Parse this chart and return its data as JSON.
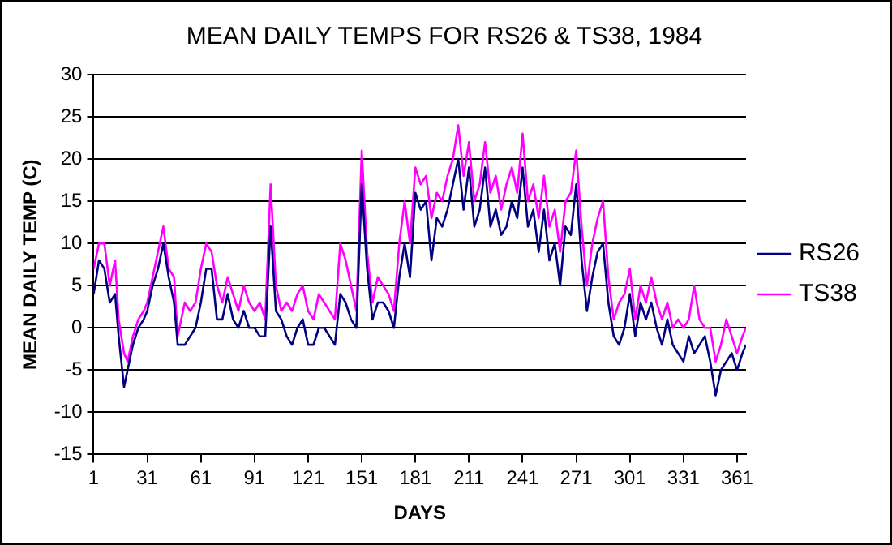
{
  "chart_data": {
    "type": "line",
    "title": "MEAN DAILY TEMPS FOR RS26 & TS38, 1984",
    "xlabel": "DAYS",
    "ylabel": "MEAN DAILY TEMP (C)",
    "x": [
      1,
      4,
      7,
      10,
      13,
      15,
      18,
      20,
      23,
      26,
      29,
      31,
      34,
      37,
      40,
      43,
      46,
      48,
      52,
      55,
      58,
      61,
      64,
      67,
      70,
      73,
      76,
      79,
      82,
      85,
      88,
      91,
      94,
      97,
      100,
      103,
      106,
      109,
      112,
      115,
      118,
      121,
      124,
      127,
      130,
      133,
      136,
      139,
      142,
      145,
      148,
      151,
      154,
      157,
      160,
      163,
      166,
      169,
      172,
      175,
      178,
      181,
      184,
      187,
      190,
      193,
      196,
      199,
      202,
      205,
      208,
      211,
      214,
      217,
      220,
      223,
      226,
      229,
      232,
      235,
      238,
      241,
      244,
      247,
      250,
      253,
      256,
      259,
      262,
      265,
      268,
      271,
      274,
      277,
      280,
      283,
      286,
      289,
      292,
      295,
      298,
      301,
      304,
      307,
      310,
      313,
      316,
      319,
      322,
      325,
      328,
      331,
      334,
      337,
      340,
      343,
      346,
      349,
      352,
      355,
      358,
      361,
      364,
      366
    ],
    "series": [
      {
        "name": "RS26",
        "color": "#000080",
        "values": [
          4,
          8,
          7,
          3,
          4,
          -1,
          -7,
          -5,
          -2,
          0,
          1,
          2,
          5,
          7,
          10,
          6,
          3,
          -2,
          -2,
          -1,
          0,
          3,
          7,
          7,
          1,
          1,
          4,
          1,
          0,
          2,
          0,
          0,
          -1,
          -1,
          12,
          2,
          1,
          -1,
          -2,
          0,
          1,
          -2,
          -2,
          0,
          0,
          -1,
          -2,
          4,
          3,
          1,
          0,
          17,
          7,
          1,
          3,
          3,
          2,
          0,
          6,
          10,
          6,
          16,
          14,
          15,
          8,
          13,
          12,
          14,
          17,
          20,
          14,
          19,
          12,
          14,
          19,
          12,
          14,
          11,
          12,
          15,
          13,
          19,
          12,
          14,
          9,
          14,
          8,
          10,
          5,
          12,
          11,
          17,
          8,
          2,
          6,
          9,
          10,
          3,
          -1,
          -2,
          0,
          4,
          -1,
          3,
          1,
          3,
          0,
          -2,
          1,
          -2,
          -3,
          -4,
          -1,
          -3,
          -2,
          -1,
          -4,
          -8,
          -5,
          -4,
          -3,
          -5,
          -3,
          -2
        ]
      },
      {
        "name": "TS38",
        "color": "#ff00ff",
        "values": [
          7,
          10,
          10,
          5,
          8,
          1,
          -3,
          -4,
          -1,
          1,
          2,
          3,
          6,
          9,
          12,
          7,
          6,
          -1,
          3,
          2,
          3,
          7,
          10,
          9,
          5,
          3,
          6,
          4,
          2,
          5,
          3,
          2,
          3,
          1,
          17,
          5,
          2,
          3,
          2,
          4,
          5,
          2,
          1,
          4,
          3,
          2,
          1,
          10,
          8,
          5,
          2,
          21,
          9,
          3,
          6,
          5,
          4,
          2,
          10,
          15,
          10,
          19,
          17,
          18,
          13,
          16,
          15,
          18,
          20,
          24,
          18,
          22,
          15,
          17,
          22,
          16,
          18,
          14,
          17,
          19,
          16,
          23,
          15,
          17,
          13,
          18,
          12,
          14,
          9,
          15,
          16,
          21,
          12,
          5,
          10,
          13,
          15,
          6,
          1,
          3,
          4,
          7,
          1,
          5,
          3,
          6,
          3,
          1,
          3,
          0,
          1,
          0,
          1,
          5,
          1,
          0,
          0,
          -4,
          -2,
          1,
          -1,
          -3,
          -1,
          0
        ]
      }
    ],
    "xlim": [
      1,
      366
    ],
    "xticks": [
      1,
      31,
      61,
      91,
      121,
      151,
      181,
      211,
      241,
      271,
      301,
      331,
      361
    ],
    "ylim": [
      -15,
      30
    ],
    "yticks": [
      -15,
      -10,
      -5,
      0,
      5,
      10,
      15,
      20,
      25,
      30
    ],
    "grid": "y",
    "legend": "right",
    "marker": "none",
    "line_style": "solid"
  }
}
